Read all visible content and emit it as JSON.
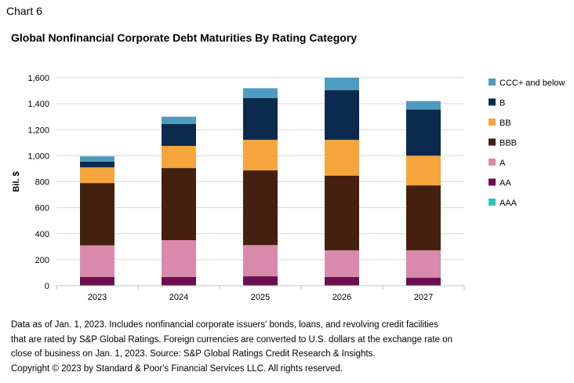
{
  "header": {
    "chart_label": "Chart 6",
    "title": "Global Nonfinancial Corporate Debt Maturities By Rating Category"
  },
  "chart_data": {
    "type": "bar",
    "stacked": true,
    "title": "Global Nonfinancial Corporate Debt Maturities By Rating Category",
    "xlabel": "",
    "ylabel": "Bil. $",
    "ylim": [
      0,
      1600
    ],
    "yticks": [
      0,
      200,
      400,
      600,
      800,
      1000,
      1200,
      1400,
      1600
    ],
    "ytick_labels": [
      "0",
      "200",
      "400",
      "600",
      "800",
      "1,000",
      "1,200",
      "1,400",
      "1,600"
    ],
    "categories": [
      "2023",
      "2024",
      "2025",
      "2026",
      "2027"
    ],
    "legend_position": "right",
    "series": [
      {
        "name": "AAA",
        "color": "#2ec4b6",
        "values": [
          2,
          2,
          2,
          2,
          2
        ]
      },
      {
        "name": "AA",
        "color": "#6b0f4f",
        "values": [
          65,
          65,
          70,
          65,
          60
        ]
      },
      {
        "name": "A",
        "color": "#d98aaa",
        "values": [
          243,
          283,
          240,
          205,
          210
        ]
      },
      {
        "name": "BBB",
        "color": "#45200f",
        "values": [
          480,
          555,
          575,
          575,
          500
        ]
      },
      {
        "name": "BB",
        "color": "#f5a53b",
        "values": [
          120,
          170,
          235,
          275,
          228
        ]
      },
      {
        "name": "B",
        "color": "#0b2a4e",
        "values": [
          45,
          170,
          322,
          383,
          355
        ]
      },
      {
        "name": "CCC+ and below",
        "color": "#4d9bc1",
        "values": [
          40,
          55,
          75,
          95,
          65
        ]
      }
    ]
  },
  "footnote": {
    "line1": "Data as of Jan. 1, 2023. Includes nonfinancial corporate issuers' bonds, loans, and revolving credit facilities",
    "line2": "that are rated by S&P Global Ratings. Foreign currencies are converted to U.S. dollars at the exchange rate on",
    "line3": "close of business on Jan. 1, 2023. Source: S&P Global Ratings Credit Research & Insights.",
    "line4": "Copyright © 2023 by Standard & Poor's Financial Services LLC. All rights reserved."
  }
}
